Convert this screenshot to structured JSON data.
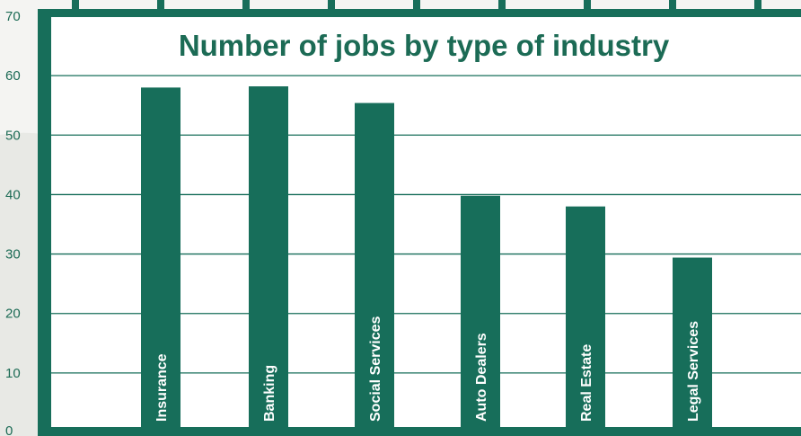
{
  "chart_data": {
    "type": "bar",
    "title": "Number of jobs by type of industry",
    "categories": [
      "Insurance",
      "Banking",
      "Social Services",
      "Auto Dealers",
      "Real Estate",
      "Legal Services"
    ],
    "values": [
      58,
      58.2,
      55.4,
      39.8,
      38,
      29.4
    ],
    "ylim": [
      0,
      70
    ],
    "yticks": [
      "0",
      "10",
      "20",
      "30",
      "40",
      "50",
      "60",
      "70"
    ],
    "grid": true,
    "colors": {
      "bar": "#176e5a",
      "frame": "#176e5a",
      "background": "#ffffff",
      "page": "#f4f4f2"
    }
  }
}
